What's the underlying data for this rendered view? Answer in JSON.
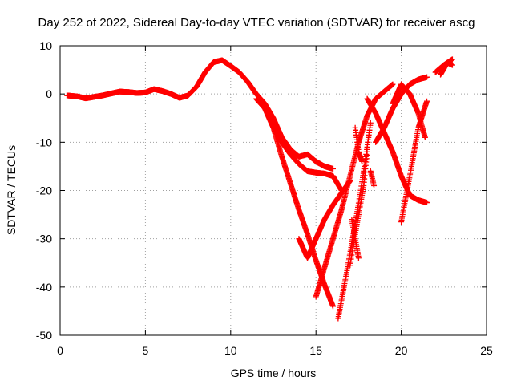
{
  "chart_data": {
    "type": "scatter",
    "title": "Day 252 of 2022, Sidereal Day-to-day VTEC variation (SDTVAR) for receiver ascg",
    "xlabel": "GPS time / hours",
    "ylabel": "SDTVAR / TECUs",
    "xlim": [
      0,
      25
    ],
    "ylim": [
      -50,
      10
    ],
    "xticks": [
      0,
      5,
      10,
      15,
      20,
      25
    ],
    "yticks": [
      -50,
      -40,
      -30,
      -20,
      -10,
      0,
      10
    ],
    "grid": true,
    "marker": "+",
    "color": "#ff0000",
    "tracks": [
      [
        [
          0.4,
          -0.3
        ],
        [
          1.0,
          -0.5
        ],
        [
          1.5,
          -0.9
        ],
        [
          2.0,
          -0.6
        ],
        [
          2.5,
          -0.3
        ],
        [
          3.0,
          0.1
        ],
        [
          3.5,
          0.5
        ],
        [
          4.0,
          0.4
        ],
        [
          4.5,
          0.2
        ],
        [
          5.0,
          0.3
        ],
        [
          5.5,
          1.0
        ],
        [
          6.0,
          0.6
        ],
        [
          6.5,
          0.0
        ],
        [
          7.0,
          -0.8
        ],
        [
          7.5,
          -0.3
        ],
        [
          8.0,
          1.5
        ],
        [
          8.5,
          4.5
        ],
        [
          9.0,
          6.6
        ],
        [
          9.5,
          7.0
        ],
        [
          10.0,
          5.8
        ],
        [
          10.5,
          4.5
        ],
        [
          11.0,
          2.5
        ],
        [
          11.5,
          0.0
        ],
        [
          12.0,
          -2.0
        ],
        [
          12.5,
          -5.0
        ],
        [
          13.0,
          -9.0
        ],
        [
          13.5,
          -11.5
        ],
        [
          14.0,
          -13.0
        ],
        [
          14.5,
          -12.5
        ],
        [
          15.0,
          -14.0
        ],
        [
          15.5,
          -15.0
        ],
        [
          16.0,
          -15.5
        ]
      ],
      [
        [
          11.5,
          -1.0
        ],
        [
          12.0,
          -3.0
        ],
        [
          12.5,
          -7.0
        ],
        [
          13.0,
          -13.0
        ],
        [
          13.5,
          -18.5
        ],
        [
          14.0,
          -24.0
        ],
        [
          14.5,
          -29.0
        ],
        [
          15.0,
          -34.5
        ],
        [
          15.5,
          -39.5
        ],
        [
          16.0,
          -44.0
        ]
      ],
      [
        [
          12.2,
          -4.5
        ],
        [
          12.8,
          -9.0
        ],
        [
          13.5,
          -12.5
        ],
        [
          14.0,
          -14.5
        ],
        [
          14.5,
          -16.0
        ],
        [
          15.0,
          -16.3
        ],
        [
          15.5,
          -16.5
        ],
        [
          16.0,
          -17.0
        ],
        [
          16.5,
          -20.0
        ]
      ],
      [
        [
          15.0,
          -42.0
        ],
        [
          15.5,
          -36.0
        ],
        [
          16.0,
          -30.0
        ],
        [
          16.5,
          -24.0
        ],
        [
          17.0,
          -17.0
        ],
        [
          17.5,
          -10.0
        ],
        [
          18.0,
          -4.5
        ],
        [
          18.5,
          -1.0
        ],
        [
          19.0,
          0.5
        ],
        [
          19.5,
          2.0
        ]
      ],
      [
        [
          14.0,
          -30.0
        ],
        [
          14.5,
          -34.0
        ],
        [
          15.0,
          -30.0
        ],
        [
          15.5,
          -26.0
        ],
        [
          16.0,
          -23.0
        ],
        [
          16.5,
          -20.5
        ],
        [
          17.0,
          -18.0
        ]
      ],
      [
        [
          16.3,
          -46.5
        ],
        [
          16.8,
          -37.0
        ],
        [
          17.3,
          -27.0
        ],
        [
          17.8,
          -16.0
        ],
        [
          18.2,
          -6.0
        ]
      ],
      [
        [
          17.0,
          -35.5
        ],
        [
          17.4,
          -27.0
        ],
        [
          17.8,
          -19.0
        ],
        [
          18.0,
          -12.0
        ]
      ],
      [
        [
          18.0,
          -1.0
        ],
        [
          18.5,
          -4.0
        ],
        [
          19.0,
          -8.0
        ],
        [
          19.5,
          -12.0
        ],
        [
          20.0,
          -17.0
        ],
        [
          20.5,
          -21.0
        ],
        [
          21.0,
          -22.0
        ],
        [
          21.5,
          -22.5
        ]
      ],
      [
        [
          17.3,
          -7.0
        ],
        [
          17.5,
          -12.0
        ],
        [
          17.7,
          -14.0
        ]
      ],
      [
        [
          17.1,
          -26.0
        ],
        [
          17.3,
          -30.0
        ],
        [
          17.5,
          -34.0
        ]
      ],
      [
        [
          18.2,
          -16.0
        ],
        [
          18.4,
          -19.0
        ]
      ],
      [
        [
          18.5,
          -10.0
        ],
        [
          19.0,
          -7.0
        ],
        [
          19.5,
          -3.0
        ],
        [
          20.0,
          0.0
        ],
        [
          20.5,
          2.0
        ],
        [
          21.0,
          3.0
        ],
        [
          21.5,
          3.5
        ]
      ],
      [
        [
          20.0,
          -26.5
        ],
        [
          20.5,
          -17.0
        ],
        [
          21.0,
          -7.0
        ],
        [
          21.5,
          -1.5
        ]
      ],
      [
        [
          19.5,
          -2.0
        ],
        [
          20.0,
          2.0
        ],
        [
          20.5,
          0.0
        ],
        [
          21.0,
          -4.0
        ],
        [
          21.4,
          -9.0
        ]
      ],
      [
        [
          22.0,
          4.5
        ],
        [
          22.5,
          6.0
        ],
        [
          23.0,
          7.2
        ]
      ],
      [
        [
          22.3,
          4.0
        ],
        [
          22.7,
          6.5
        ],
        [
          23.0,
          6.0
        ]
      ]
    ]
  }
}
